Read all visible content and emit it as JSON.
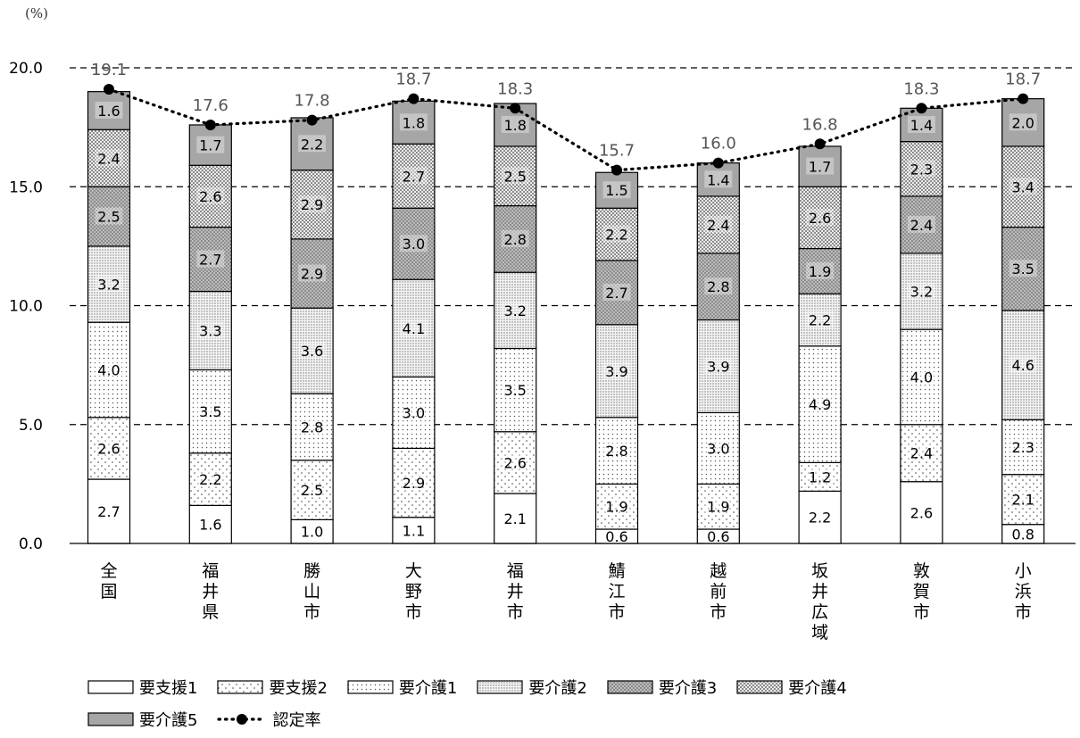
{
  "chart_data": {
    "type": "bar",
    "stacked": true,
    "unit_label": "(%)",
    "categories": [
      "全国",
      "福井県",
      "勝山市",
      "大野市",
      "福井市",
      "鯖江市",
      "越前市",
      "坂井広域",
      "敦賀市",
      "小浜市"
    ],
    "series": [
      {
        "name": "要支援1",
        "values": [
          2.7,
          1.6,
          1.0,
          1.1,
          2.1,
          0.6,
          0.6,
          2.2,
          2.6,
          0.8
        ],
        "fill": "#ffffff",
        "pattern": "none"
      },
      {
        "name": "要支援2",
        "values": [
          2.6,
          2.2,
          2.5,
          2.9,
          2.6,
          1.9,
          1.9,
          1.2,
          2.4,
          2.1
        ],
        "fill": "#ffffff",
        "pattern": "sparse-dots"
      },
      {
        "name": "要介護1",
        "values": [
          4.0,
          3.5,
          2.8,
          3.0,
          3.5,
          2.8,
          3.0,
          4.9,
          4.0,
          2.3
        ],
        "fill": "#ffffff",
        "pattern": "dots"
      },
      {
        "name": "要介護2",
        "values": [
          3.2,
          3.3,
          3.6,
          4.1,
          3.2,
          3.9,
          3.9,
          2.2,
          3.2,
          4.6
        ],
        "fill": "#f2f2f2",
        "pattern": "dense-dots"
      },
      {
        "name": "要介護3",
        "values": [
          2.5,
          2.7,
          2.9,
          3.0,
          2.8,
          2.7,
          2.8,
          1.9,
          2.4,
          3.5
        ],
        "fill": "#bdbdbd",
        "pattern": "crosshatch"
      },
      {
        "name": "要介護4",
        "values": [
          2.4,
          2.6,
          2.9,
          2.7,
          2.5,
          2.2,
          2.4,
          2.6,
          2.3,
          3.4
        ],
        "fill": "#e0e0e0",
        "pattern": "checker"
      },
      {
        "name": "要介護5",
        "values": [
          1.6,
          1.7,
          2.2,
          1.8,
          1.8,
          1.5,
          1.4,
          1.7,
          1.4,
          2.0
        ],
        "fill": "#a6a6a6",
        "pattern": "none"
      }
    ],
    "line_series": {
      "name": "認定率",
      "values": [
        19.1,
        17.6,
        17.8,
        18.7,
        18.3,
        15.7,
        16.0,
        16.8,
        18.3,
        18.7
      ],
      "color": "#000000",
      "style": "dotted-with-markers"
    },
    "yticks": [
      "0.0",
      "5.0",
      "10.0",
      "15.0",
      "20.0"
    ],
    "ylim": [
      0,
      20
    ],
    "grid": "dashed-horizontal",
    "legend_position": "bottom",
    "title": "",
    "xlabel": "",
    "ylabel": ""
  }
}
